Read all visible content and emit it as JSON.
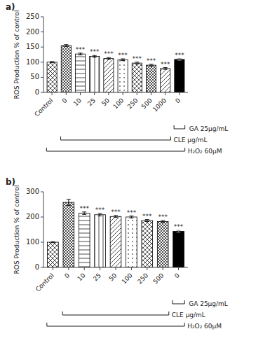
{
  "chart_data": [
    {
      "type": "bar",
      "title": "a)",
      "categories": [
        "Control",
        "0",
        "10",
        "25",
        "50",
        "100",
        "250",
        "500",
        "1000",
        "0"
      ],
      "values": [
        100,
        155,
        127,
        119,
        112,
        108,
        97,
        90,
        79,
        109
      ],
      "errors": [
        2,
        3,
        3,
        3,
        3,
        3,
        3,
        3,
        3,
        3
      ],
      "significance": [
        null,
        null,
        "***",
        "***",
        "***",
        "***",
        "***",
        "***",
        "***",
        "***"
      ],
      "colors": [
        "#ffffff",
        "#ffffff",
        "#ffffff",
        "#ffffff",
        "#ffffff",
        "#ffffff",
        "#ffffff",
        "#ffffff",
        "#ffffff",
        "#000000"
      ],
      "ylabel": "ROS Production % of control",
      "ylim": [
        0,
        250
      ],
      "yticks": [
        0,
        50,
        100,
        150,
        200,
        250
      ],
      "annotations": [
        "GA 25μg/mL",
        "CLE μg/mL",
        "H₂O₂ 60μM"
      ]
    },
    {
      "type": "bar",
      "title": "b)",
      "categories": [
        "Control",
        "0",
        "10",
        "25",
        "50",
        "100",
        "250",
        "500",
        "0"
      ],
      "values": [
        100,
        258,
        215,
        209,
        202,
        200,
        186,
        182,
        143
      ],
      "errors": [
        2,
        12,
        5,
        5,
        4,
        4,
        4,
        4,
        4
      ],
      "significance": [
        null,
        null,
        "***",
        "***",
        "***",
        "***",
        "***",
        "***",
        "***"
      ],
      "colors": [
        "#ffffff",
        "#ffffff",
        "#ffffff",
        "#ffffff",
        "#ffffff",
        "#ffffff",
        "#ffffff",
        "#ffffff",
        "#000000"
      ],
      "ylabel": "ROS Production % of control",
      "ylim": [
        0,
        300
      ],
      "yticks": [
        0,
        100,
        200,
        300
      ],
      "annotations": [
        "GA 25μg/mL",
        "CLE μg/mL",
        "H₂O₂ 60μM"
      ]
    }
  ]
}
